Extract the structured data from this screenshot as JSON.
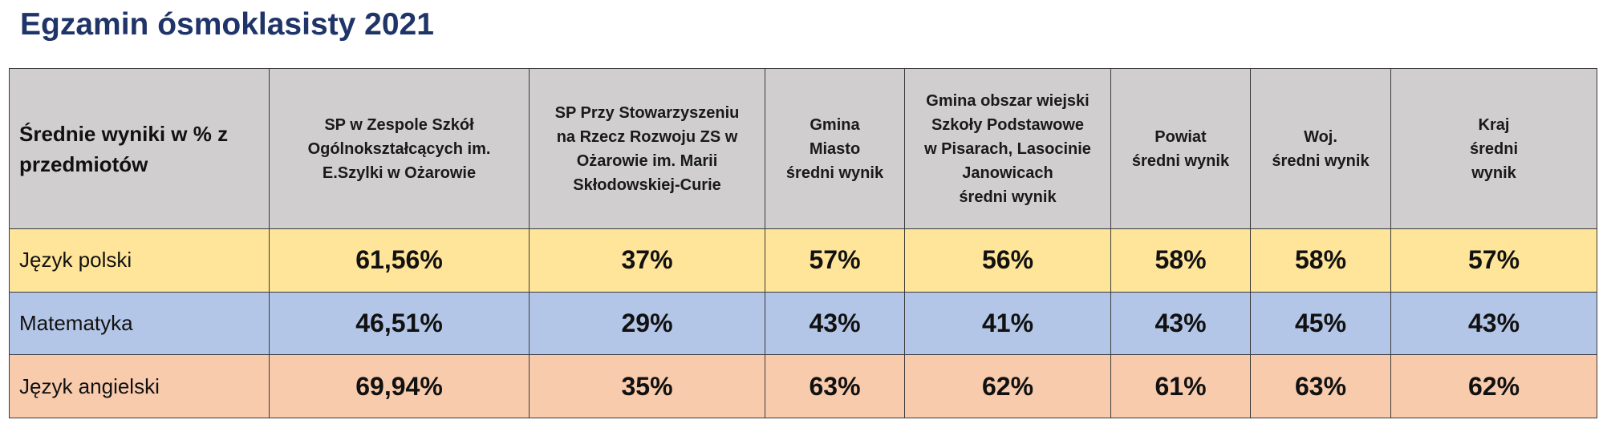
{
  "title": "Egzamin ósmoklasisty 2021",
  "chart_data": {
    "type": "table",
    "corner_label": "Średnie wyniki w % z przedmiotów",
    "columns": [
      "SP w Zespole Szkół\nOgólnokształcących im.\nE.Szylki w Ożarowie",
      "SP Przy Stowarzyszeniu\nna Rzecz Rozwoju ZS w\nOżarowie im. Marii\nSkłodowskiej-Curie",
      "Gmina\nMiasto\nśredni wynik",
      "Gmina obszar wiejski\nSzkoły Podstawowe\nw Pisarach, Lasocinie\nJanowicach\nśredni wynik",
      "Powiat\nśredni wynik",
      "Woj.\nśredni wynik",
      "Kraj\nśredni\nwynik"
    ],
    "rows": [
      {
        "subject": "Język polski",
        "color": "#ffe599",
        "values": [
          "61,56%",
          "37%",
          "57%",
          "56%",
          "58%",
          "58%",
          "57%"
        ]
      },
      {
        "subject": "Matematyka",
        "color": "#b4c6e7",
        "values": [
          "46,51%",
          "29%",
          "43%",
          "41%",
          "43%",
          "45%",
          "43%"
        ]
      },
      {
        "subject": "Język angielski",
        "color": "#f8cbad",
        "values": [
          "69,94%",
          "35%",
          "63%",
          "62%",
          "61%",
          "63%",
          "62%"
        ]
      }
    ]
  }
}
